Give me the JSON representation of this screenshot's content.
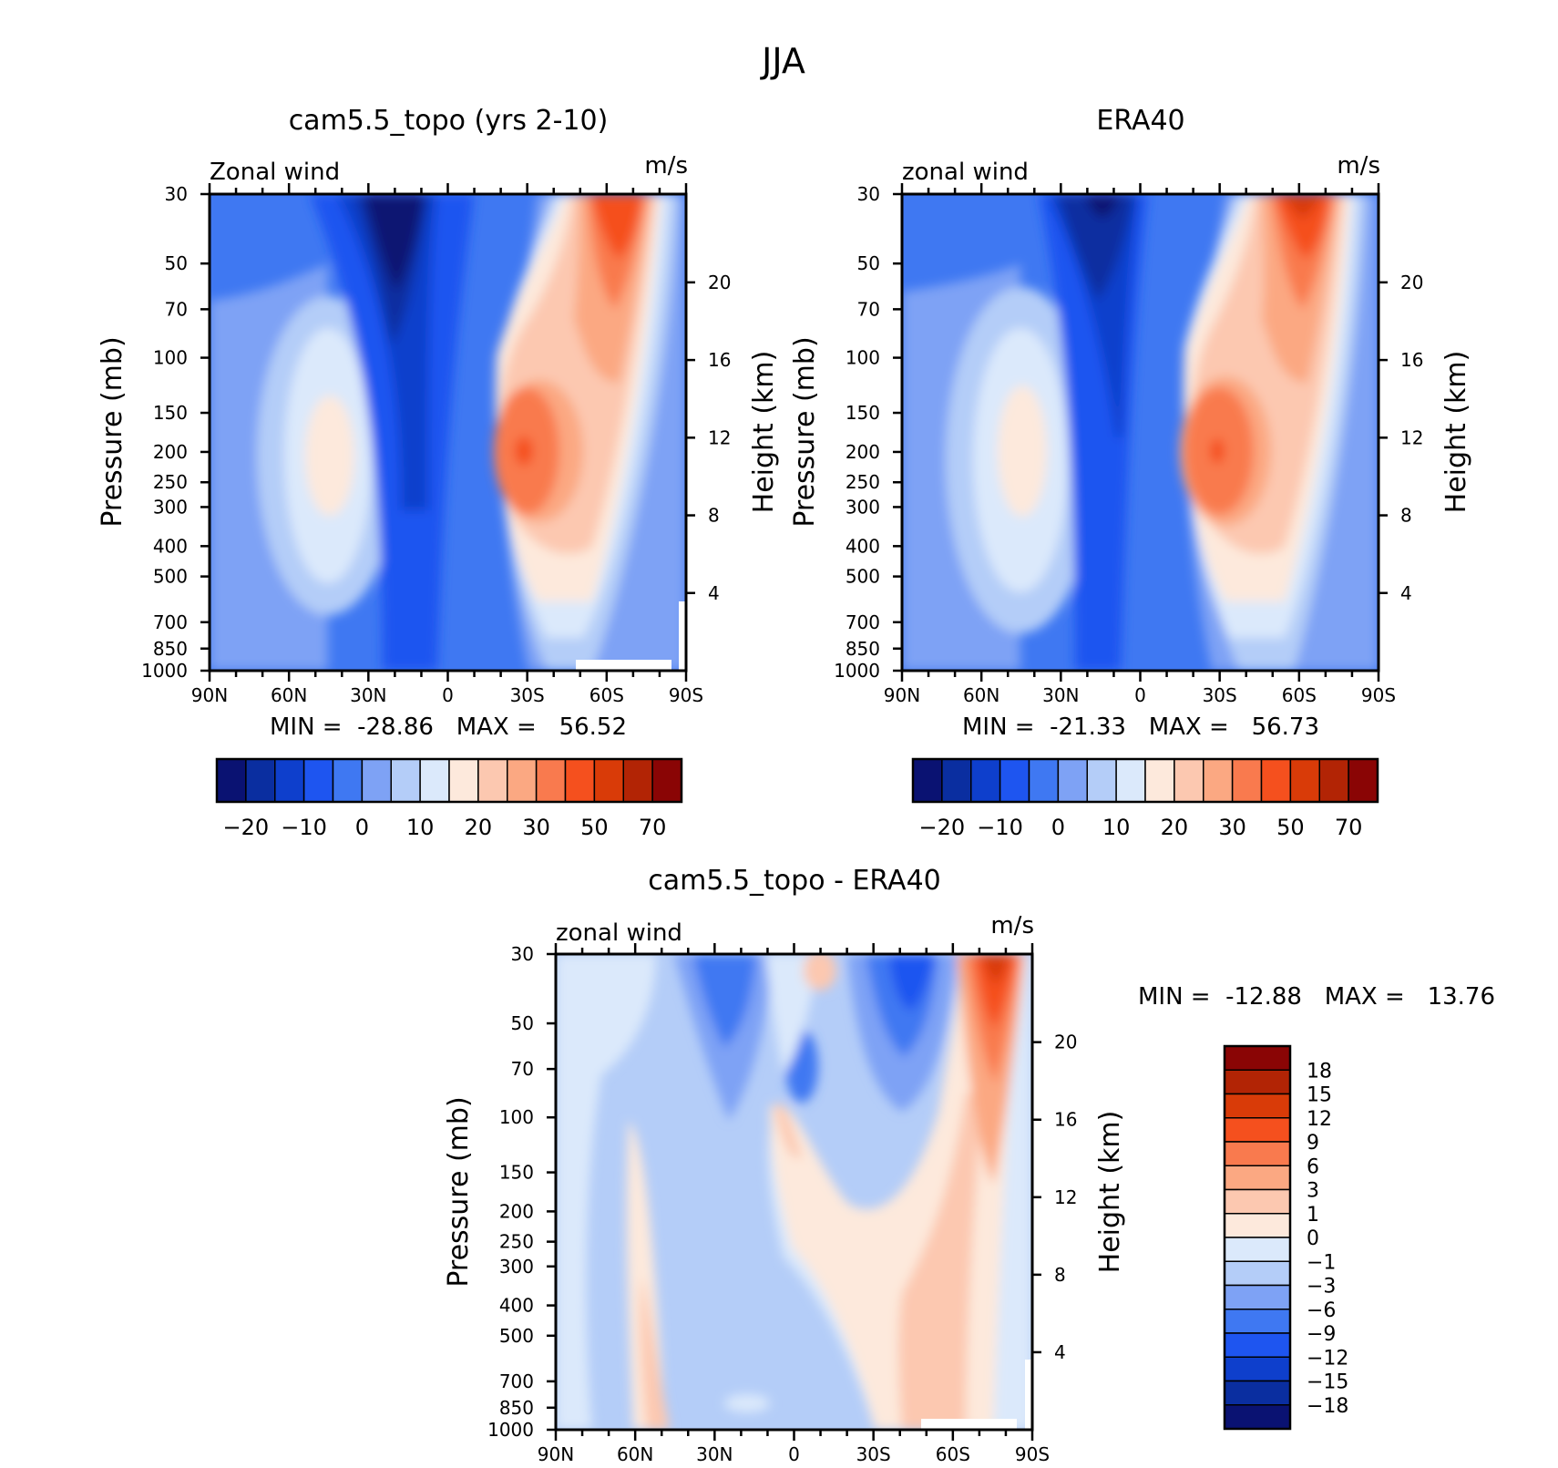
{
  "page_title": "JJA",
  "chart_data": [
    {
      "type": "heatmap",
      "title": "cam5.5_topo (yrs 2-10)",
      "corner_left": "Zonal wind",
      "corner_right": "m/s",
      "ylabel": "Pressure (mb)",
      "y2label": "Height (km)",
      "x_ticks": [
        "90N",
        "60N",
        "30N",
        "0",
        "30S",
        "60S",
        "90S"
      ],
      "y_ticks": [
        30,
        50,
        70,
        100,
        150,
        200,
        250,
        300,
        400,
        500,
        700,
        850,
        1000
      ],
      "y2_ticks": [
        4,
        8,
        12,
        16,
        20
      ],
      "stats": "MIN =  -28.86   MAX =   56.52",
      "min": -28.86,
      "max": 56.52,
      "colorbar_labels": [
        "-20",
        "-10",
        "0",
        "10",
        "20",
        "30",
        "50",
        "70"
      ]
    },
    {
      "type": "heatmap",
      "title": "ERA40",
      "corner_left": "zonal wind",
      "corner_right": "m/s",
      "ylabel": "Pressure (mb)",
      "y2label": "Height (km)",
      "x_ticks": [
        "90N",
        "60N",
        "30N",
        "0",
        "30S",
        "60S",
        "90S"
      ],
      "y_ticks": [
        30,
        50,
        70,
        100,
        150,
        200,
        250,
        300,
        400,
        500,
        700,
        850,
        1000
      ],
      "y2_ticks": [
        4,
        8,
        12,
        16,
        20
      ],
      "stats": "MIN =  -21.33   MAX =   56.73",
      "min": -21.33,
      "max": 56.73,
      "colorbar_labels": [
        "-20",
        "-10",
        "0",
        "10",
        "20",
        "30",
        "50",
        "70"
      ]
    },
    {
      "type": "heatmap",
      "title": "cam5.5_topo - ERA40",
      "corner_left": "zonal wind",
      "corner_right": "m/s",
      "ylabel": "Pressure (mb)",
      "y2label": "Height (km)",
      "x_ticks": [
        "90N",
        "60N",
        "30N",
        "0",
        "30S",
        "60S",
        "90S"
      ],
      "y_ticks": [
        30,
        50,
        70,
        100,
        150,
        200,
        250,
        300,
        400,
        500,
        700,
        850,
        1000
      ],
      "y2_ticks": [
        4,
        8,
        12,
        16,
        20
      ],
      "stats": "MIN =  -12.88   MAX =   13.76",
      "min": -12.88,
      "max": 13.76,
      "colorbar_labels": [
        "18",
        "15",
        "12",
        "9",
        "6",
        "3",
        "1",
        "0",
        "-1",
        "-3",
        "-6",
        "-9",
        "-12",
        "-15",
        "-18"
      ]
    }
  ],
  "colors": {
    "wind_scale": [
      "#0a1272",
      "#0a2ea0",
      "#0e3fcc",
      "#1e55f0",
      "#3f78f2",
      "#7ea2f5",
      "#b4cdf8",
      "#dbe9fb",
      "#fde9dc",
      "#fcc8b0",
      "#fba882",
      "#f97a4e",
      "#f5501e",
      "#d93b08",
      "#b22405",
      "#8a0505"
    ],
    "diff_scale": [
      "#8a0505",
      "#b22405",
      "#d93b08",
      "#f5501e",
      "#f97a4e",
      "#fba882",
      "#fcc8b0",
      "#fde9dc",
      "#dbe9fb",
      "#b4cdf8",
      "#7ea2f5",
      "#3f78f2",
      "#1e55f0",
      "#0e3fcc",
      "#0a2ea0",
      "#0a1272"
    ]
  }
}
